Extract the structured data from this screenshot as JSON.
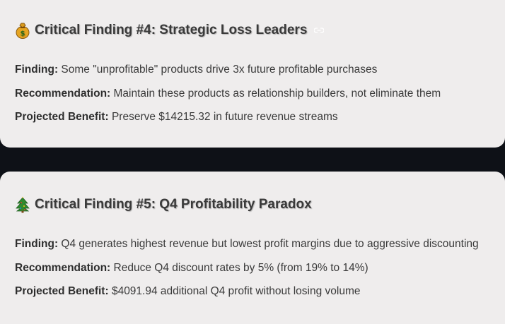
{
  "findings": [
    {
      "title": "Critical Finding #4: Strategic Loss Leaders",
      "emoji": "money-bag-icon",
      "finding_label": "Finding:",
      "finding_text": " Some \"unprofitable\" products drive 3x future profitable purchases",
      "recommendation_label": "Recommendation:",
      "recommendation_text": " Maintain these products as relationship builders, not eliminate them",
      "benefit_label": "Projected Benefit:",
      "benefit_text": " Preserve $14215.32 in future revenue streams"
    },
    {
      "title": "Critical Finding #5: Q4 Profitability Paradox",
      "emoji": "christmas-tree-icon",
      "finding_label": "Finding:",
      "finding_text": " Q4 generates highest revenue but lowest profit margins due to aggressive discounting",
      "recommendation_label": "Recommendation:",
      "recommendation_text": " Reduce Q4 discount rates by 5% (from 19% to 14%)",
      "benefit_label": "Projected Benefit:",
      "benefit_text": " $4091.94 additional Q4 profit without losing volume"
    }
  ],
  "colors": {
    "card_background": "#efeded",
    "page_background": "#0e1117",
    "text": "#3a3a3a"
  }
}
